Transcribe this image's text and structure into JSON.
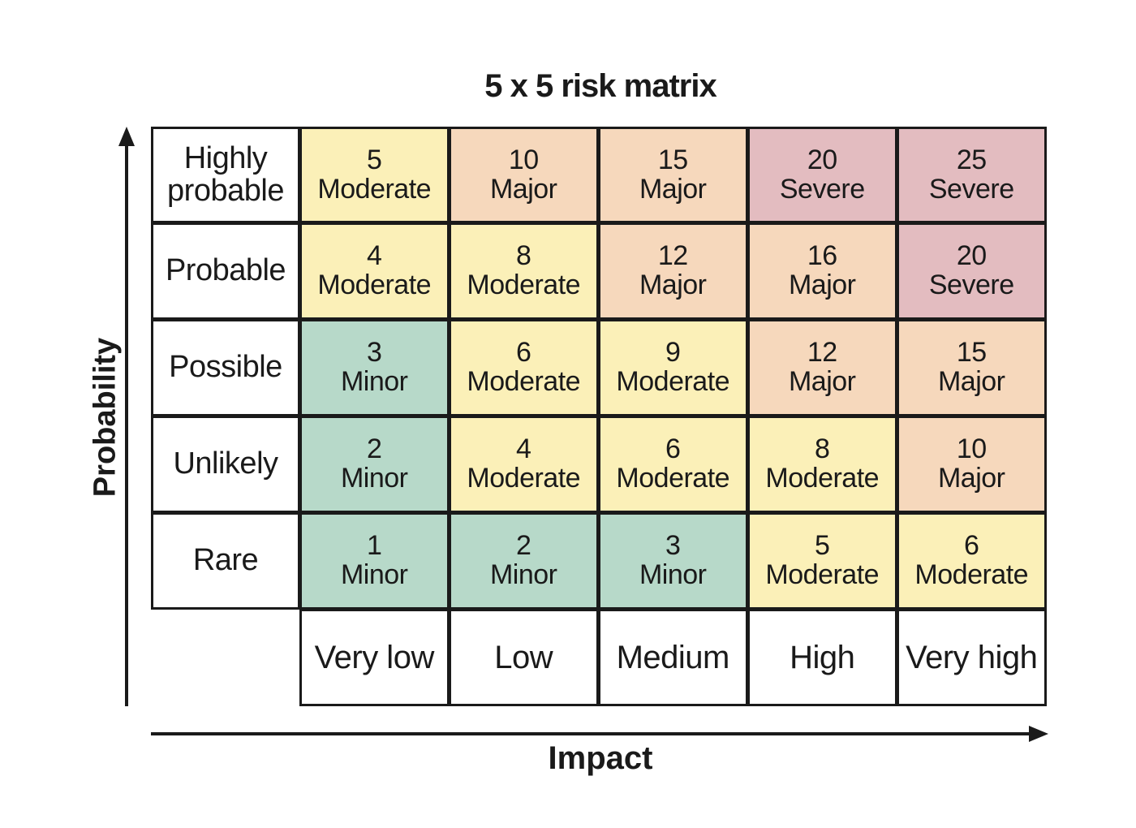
{
  "title": "5 x 5 risk matrix",
  "axes": {
    "y_label": "Probability",
    "x_label": "Impact"
  },
  "probability_levels": [
    "Highly probable",
    "Probable",
    "Possible",
    "Unlikely",
    "Rare"
  ],
  "impact_levels": [
    "Very low",
    "Low",
    "Medium",
    "High",
    "Very high"
  ],
  "matrix": [
    [
      {
        "score": "5",
        "level": "Moderate"
      },
      {
        "score": "10",
        "level": "Major"
      },
      {
        "score": "15",
        "level": "Major"
      },
      {
        "score": "20",
        "level": "Severe"
      },
      {
        "score": "25",
        "level": "Severe"
      }
    ],
    [
      {
        "score": "4",
        "level": "Moderate"
      },
      {
        "score": "8",
        "level": "Moderate"
      },
      {
        "score": "12",
        "level": "Major"
      },
      {
        "score": "16",
        "level": "Major"
      },
      {
        "score": "20",
        "level": "Severe"
      }
    ],
    [
      {
        "score": "3",
        "level": "Minor"
      },
      {
        "score": "6",
        "level": "Moderate"
      },
      {
        "score": "9",
        "level": "Moderate"
      },
      {
        "score": "12",
        "level": "Major"
      },
      {
        "score": "15",
        "level": "Major"
      }
    ],
    [
      {
        "score": "2",
        "level": "Minor"
      },
      {
        "score": "4",
        "level": "Moderate"
      },
      {
        "score": "6",
        "level": "Moderate"
      },
      {
        "score": "8",
        "level": "Moderate"
      },
      {
        "score": "10",
        "level": "Major"
      }
    ],
    [
      {
        "score": "1",
        "level": "Minor"
      },
      {
        "score": "2",
        "level": "Minor"
      },
      {
        "score": "3",
        "level": "Minor"
      },
      {
        "score": "5",
        "level": "Moderate"
      },
      {
        "score": "6",
        "level": "Moderate"
      }
    ]
  ],
  "level_colors": {
    "Minor": "#b7d9c9",
    "Moderate": "#fbf0b8",
    "Major": "#f6d8bc",
    "Severe": "#e3bcc0"
  }
}
